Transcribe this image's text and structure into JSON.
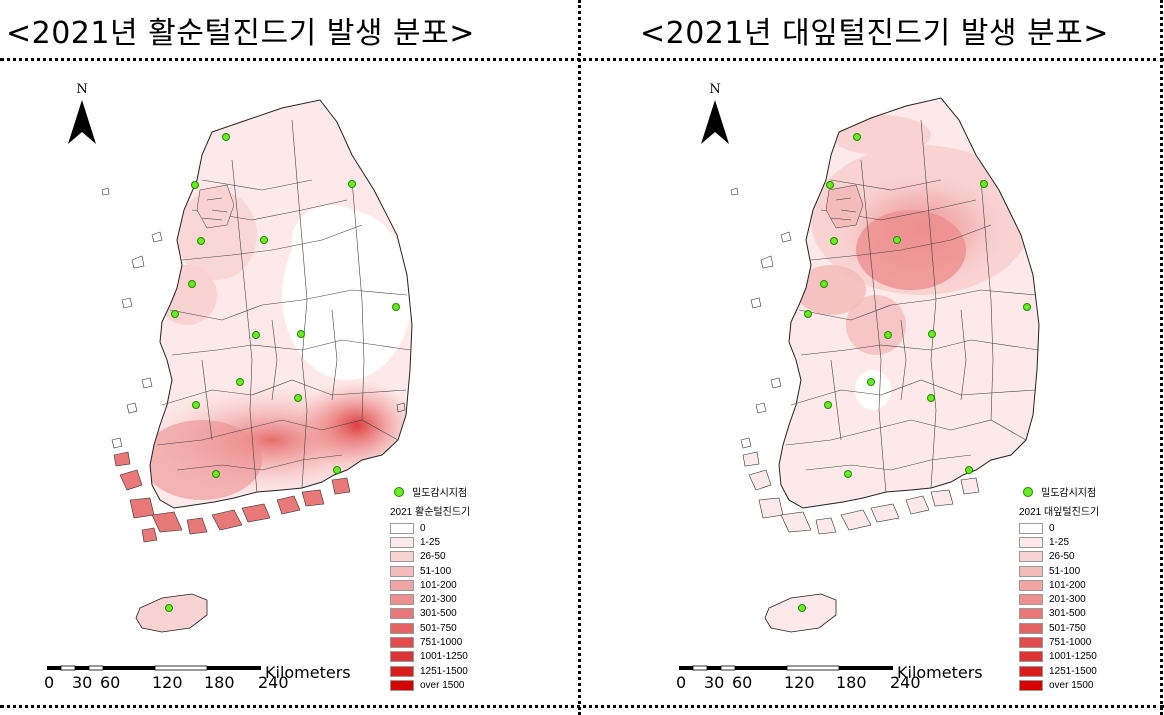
{
  "titles": {
    "left": "<2021년 활순털진드기 발생 분포>",
    "right": "<2021년 대잎털진드기 발생 분포>"
  },
  "north_label": "N",
  "maps": [
    {
      "station_label": "밀도감시지점",
      "legend_title": "2021 활순털진드기"
    },
    {
      "station_label": "밀도감시지점",
      "legend_title": "2021 대잎털진드기"
    }
  ],
  "legend_classes": [
    {
      "label": "0",
      "color": "#ffffff"
    },
    {
      "label": "1-25",
      "color": "#fde9e9"
    },
    {
      "label": "26-50",
      "color": "#f9d2d2"
    },
    {
      "label": "51-100",
      "color": "#f5bcbc"
    },
    {
      "label": "101-200",
      "color": "#f1a5a5"
    },
    {
      "label": "201-300",
      "color": "#ed8f8f"
    },
    {
      "label": "301-500",
      "color": "#e97878"
    },
    {
      "label": "501-750",
      "color": "#e56262"
    },
    {
      "label": "751-1000",
      "color": "#e14b4b"
    },
    {
      "label": "1001-1250",
      "color": "#dd3535"
    },
    {
      "label": "1251-1500",
      "color": "#d91e1e"
    },
    {
      "label": "over 1500",
      "color": "#d50000"
    }
  ],
  "scale": {
    "unit": "Kilometers",
    "ticks": [
      "0",
      "30",
      "60",
      "120",
      "180",
      "240"
    ]
  },
  "colors": {
    "station_fill": "#66ee22",
    "boundary": "#333333"
  }
}
